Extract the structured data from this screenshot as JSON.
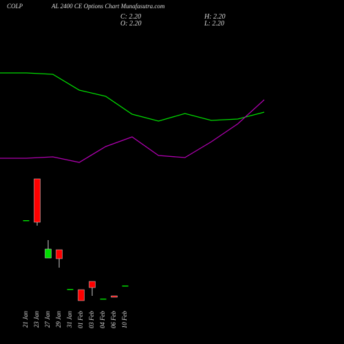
{
  "chart_data": [
    {
      "type": "line",
      "title": "COLP",
      "subtitle": "AL 2400  CE Options  Chart Munafasutra.com",
      "ylim": [
        0,
        8
      ],
      "series": [
        {
          "color": "#00dd00",
          "values": [
            7.2,
            7.2,
            7.1,
            5.95,
            5.5,
            4.2,
            3.7,
            4.25,
            3.75,
            3.85,
            4.35
          ]
        },
        {
          "color": "#b000b0",
          "values": [
            1.0,
            1.0,
            1.1,
            0.7,
            1.85,
            2.55,
            1.2,
            1.05,
            2.2,
            3.5,
            5.25
          ]
        }
      ]
    },
    {
      "type": "candlestick",
      "annotations": [
        "C: 2.20",
        "H: 2.20",
        "O: 2.20",
        "L: 2.20"
      ],
      "categories": [
        "21 Jan",
        "23 Jan",
        "27 Jan",
        "29 Jan",
        "31 Jan",
        "01 Feb",
        "03 Feb",
        "04 Feb",
        "06 Feb",
        "10 Feb"
      ],
      "open": [
        6.95,
        9.95,
        4.2,
        4.8,
        1.95,
        1.9,
        2.5,
        1.25,
        1.45,
        2.2
      ],
      "high": [
        6.95,
        9.95,
        5.5,
        4.8,
        1.95,
        1.9,
        2.5,
        1.25,
        1.45,
        2.2
      ],
      "low": [
        6.95,
        6.55,
        4.2,
        3.5,
        1.95,
        1.1,
        1.45,
        1.25,
        1.35,
        2.2
      ],
      "close": [
        6.95,
        6.8,
        4.85,
        4.15,
        1.95,
        1.1,
        2.05,
        1.25,
        1.35,
        2.2
      ],
      "up_color": "#00dd00",
      "down_color": "#ff0000",
      "ylim": [
        0.7,
        10.45
      ]
    }
  ]
}
